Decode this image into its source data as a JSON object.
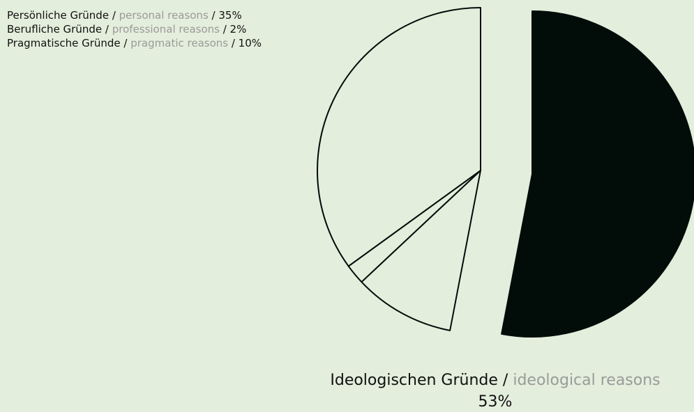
{
  "chart_data": {
    "type": "pie",
    "categories": [
      "Persönliche Gründe",
      "Berufliche Gründe",
      "Pragmatische Gründe",
      "Ideologischen Gründe"
    ],
    "translations": [
      "personal reasons",
      "professional reasons",
      "pragmatic reasons",
      "ideological reasons"
    ],
    "separator": " / ",
    "values": [
      35,
      2,
      10,
      53
    ],
    "value_labels": [
      "35%",
      "2%",
      "10%",
      "53%"
    ],
    "colors": [
      "#e4eedc",
      "#e4eedc",
      "#e4eedc",
      "#020d0a"
    ],
    "explode": [
      0,
      0,
      0,
      1
    ]
  }
}
